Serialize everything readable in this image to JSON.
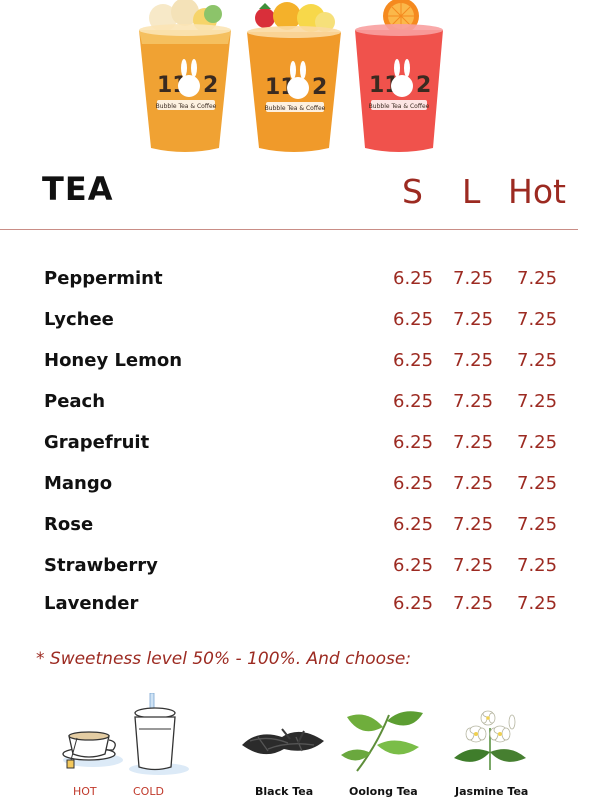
{
  "hero": {
    "cups": [
      {
        "logo": "11 2",
        "tagline": "Bubble Tea & Coffee",
        "color": "#f0a233"
      },
      {
        "logo": "11 2",
        "tagline": "Bubble Tea & Coffee",
        "color": "#f09a2a"
      },
      {
        "logo": "11 2",
        "tagline": "Bubble Tea & Coffee",
        "color": "#f0524c"
      }
    ]
  },
  "menu": {
    "title": "TEA",
    "columns": [
      "S",
      "L",
      "Hot"
    ],
    "items": [
      {
        "name": "Peppermint",
        "s": "6.25",
        "l": "7.25",
        "hot": "7.25"
      },
      {
        "name": "Lychee",
        "s": "6.25",
        "l": "7.25",
        "hot": "7.25"
      },
      {
        "name": "Honey Lemon",
        "s": "6.25",
        "l": "7.25",
        "hot": "7.25"
      },
      {
        "name": "Peach",
        "s": "6.25",
        "l": "7.25",
        "hot": "7.25"
      },
      {
        "name": "Grapefruit",
        "s": "6.25",
        "l": "7.25",
        "hot": "7.25"
      },
      {
        "name": "Mango",
        "s": "6.25",
        "l": "7.25",
        "hot": "7.25"
      },
      {
        "name": "Rose",
        "s": "6.25",
        "l": "7.25",
        "hot": "7.25"
      },
      {
        "name": "Strawberry",
        "s": "6.25",
        "l": "7.25",
        "hot": "7.25"
      },
      {
        "name": "Lavender",
        "s": "6.25",
        "l": "7.25",
        "hot": "7.25"
      }
    ],
    "note": "* Sweetness level 50% - 100%. And choose:"
  },
  "options": {
    "temperature": [
      {
        "label": "HOT",
        "icon": "hot-cup-icon"
      },
      {
        "label": "COLD",
        "icon": "cold-cup-icon"
      }
    ],
    "teas": [
      {
        "label": "Black Tea",
        "icon": "black-tea-leaves-icon"
      },
      {
        "label": "Oolong Tea",
        "icon": "oolong-tea-leaves-icon"
      },
      {
        "label": "Jasmine Tea",
        "icon": "jasmine-flower-icon"
      }
    ]
  },
  "colors": {
    "accent": "#9c2a21",
    "text": "#111111"
  }
}
